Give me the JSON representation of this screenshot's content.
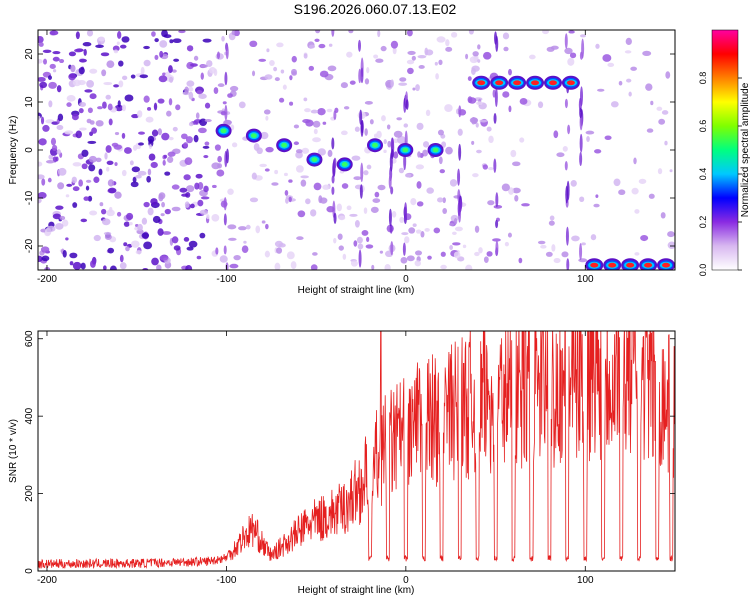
{
  "title": "S196.2026.060.07.13.E02",
  "chart_data": [
    {
      "type": "heatmap",
      "name": "spectrogram",
      "xlabel": "Height of straight line (km)",
      "ylabel": "Frequency (Hz)",
      "xlim": [
        -205,
        150
      ],
      "ylim": [
        -25,
        25
      ],
      "xticks": [
        -200,
        -100,
        0,
        100
      ],
      "yticks": [
        -20,
        -10,
        0,
        10,
        20
      ],
      "colorbar": {
        "label": "Normalized spectral amplitude",
        "range": [
          0,
          1
        ],
        "ticks": [
          "0.0",
          "0.2",
          "0.4",
          "0.6",
          "0.8"
        ],
        "colors": [
          "#ffffff",
          "#d8b8f0",
          "#8a2be2",
          "#0000ff",
          "#00c8ff",
          "#00ff80",
          "#7fff00",
          "#ffff00",
          "#ff8000",
          "#ff0000",
          "#ff00a0"
        ]
      },
      "features": [
        {
          "label": "tone near 0 Hz",
          "x_range": [
            -110,
            25
          ],
          "freq_hz": [
            4,
            3,
            1,
            -2,
            -3,
            1,
            0,
            0
          ]
        },
        {
          "label": "tone at +14 Hz",
          "x_range": [
            42,
            100
          ],
          "freq_hz": 14
        },
        {
          "label": "tone at -24 Hz",
          "x_range": [
            105,
            150
          ],
          "freq_hz": -24
        }
      ]
    },
    {
      "type": "line",
      "name": "snr",
      "xlabel": "Height of straight line (km)",
      "ylabel": "SNR (10 * v/v)",
      "xlim": [
        -205,
        150
      ],
      "ylim": [
        0,
        620
      ],
      "xticks": [
        -200,
        -100,
        0,
        100
      ],
      "yticks": [
        0,
        200,
        400,
        600
      ],
      "color": "#e52020",
      "series": [
        {
          "name": "SNR",
          "x": [
            -205,
            -150,
            -110,
            -100,
            -95,
            -90,
            -85,
            -80,
            -75,
            -70,
            -65,
            -60,
            -55,
            -50,
            -45,
            -40,
            -35,
            -30,
            -25,
            -20,
            -15,
            -10,
            -5,
            0,
            10,
            20,
            30,
            40,
            50,
            60,
            70,
            80,
            90,
            100,
            110,
            120,
            130,
            140,
            150
          ],
          "y": [
            18,
            20,
            25,
            35,
            60,
            90,
            110,
            70,
            40,
            60,
            80,
            100,
            120,
            130,
            140,
            150,
            160,
            190,
            220,
            260,
            300,
            320,
            340,
            360,
            380,
            400,
            420,
            440,
            450,
            460,
            470,
            480,
            500,
            510,
            520,
            530,
            520,
            480,
            400
          ]
        }
      ],
      "spikes": [
        {
          "x": -14,
          "y": 625
        }
      ],
      "dropouts_x": [
        -20,
        -10,
        0,
        10,
        20,
        30,
        40,
        50,
        60,
        70,
        80,
        90,
        100,
        110,
        120,
        130,
        140,
        148
      ]
    }
  ]
}
